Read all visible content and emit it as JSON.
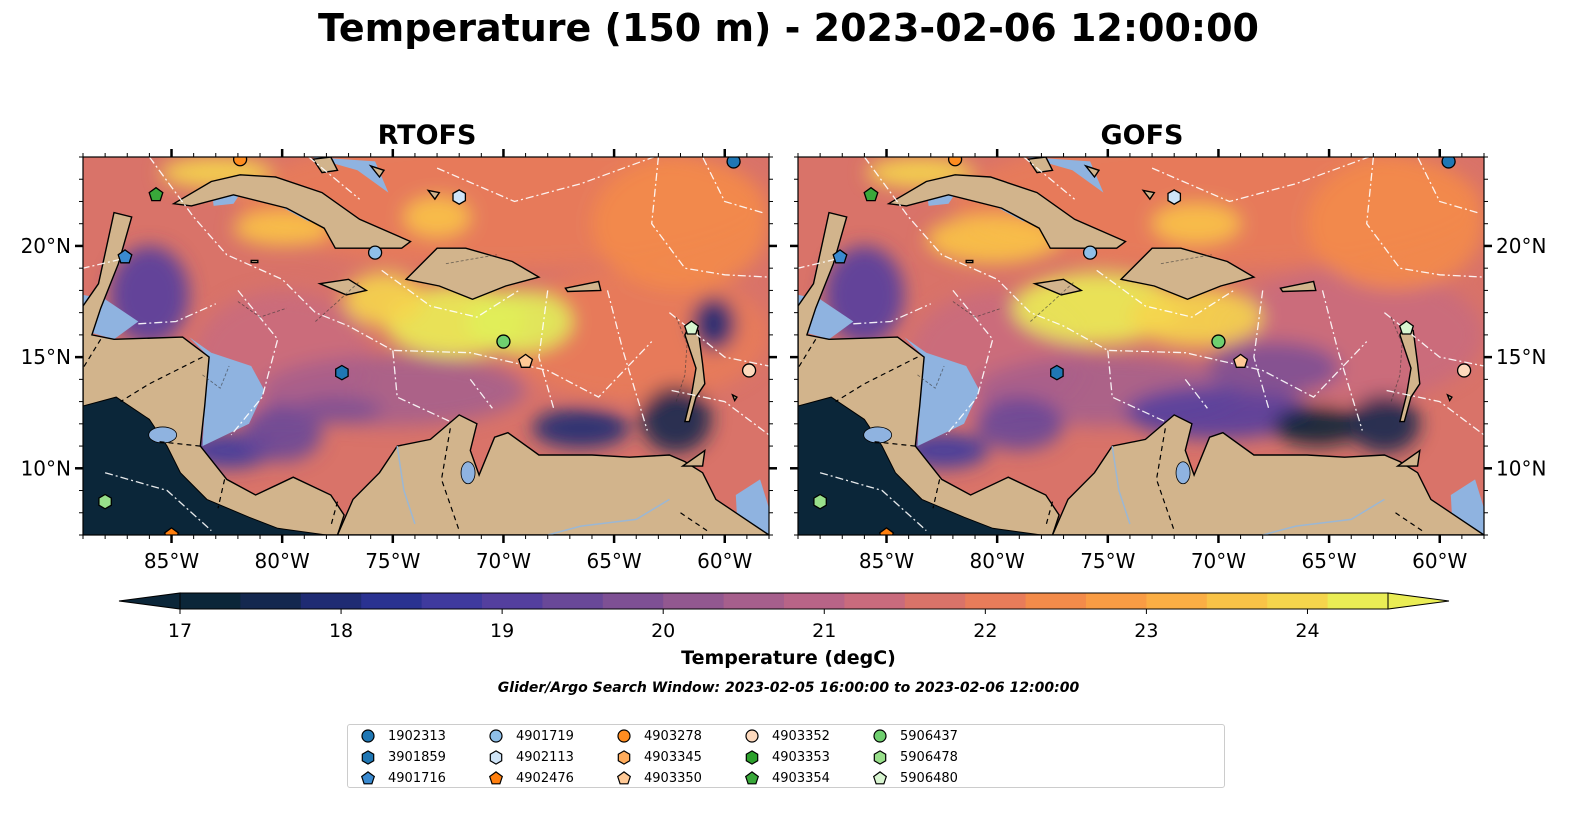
{
  "title": "Temperature (150 m) - 2023-02-06 12:00:00",
  "panels": [
    {
      "title": "RTOFS"
    },
    {
      "title": "GOFS"
    }
  ],
  "axes": {
    "x_ticks": [
      "85°W",
      "80°W",
      "75°W",
      "70°W",
      "65°W",
      "60°W"
    ],
    "x_tick_values": [
      -85,
      -80,
      -75,
      -70,
      -65,
      -60
    ],
    "y_ticks": [
      "20°N",
      "15°N",
      "10°N"
    ],
    "y_tick_values": [
      20,
      15,
      10
    ],
    "lon_range": [
      -89,
      -58
    ],
    "lat_range": [
      7,
      24
    ]
  },
  "colorbar": {
    "label": "Temperature (degC)",
    "tick_labels": [
      "17",
      "18",
      "19",
      "20",
      "21",
      "22",
      "23",
      "24"
    ],
    "tick_values": [
      17,
      18,
      19,
      20,
      21,
      22,
      23,
      24
    ],
    "range": [
      16.75,
      24.5
    ],
    "extend": "both",
    "colors": [
      "#0b2639",
      "#14284f",
      "#1f2b73",
      "#2a3291",
      "#3f3a9e",
      "#543f9e",
      "#694898",
      "#7e5094",
      "#925890",
      "#a65f8c",
      "#b86487",
      "#c96b7d",
      "#d97369",
      "#e87c5a",
      "#f38b4a",
      "#f99c44",
      "#fbae44",
      "#f9c347",
      "#f5d54c",
      "#eaed55"
    ]
  },
  "search_window": "Glider/Argo Search Window: 2023-02-05 16:00:00 to 2023-02-06 12:00:00",
  "legend": [
    {
      "id": "1902313",
      "color": "#1f77b4",
      "marker": "circle"
    },
    {
      "id": "3901859",
      "color": "#1f77b4",
      "marker": "hexagon"
    },
    {
      "id": "4901716",
      "color": "#3a8ad0",
      "marker": "pentagon"
    },
    {
      "id": "4901719",
      "color": "#8fbfe8",
      "marker": "circle"
    },
    {
      "id": "4902113",
      "color": "#cfe4f7",
      "marker": "hexagon"
    },
    {
      "id": "4902476",
      "color": "#ff7f0e",
      "marker": "pentagon"
    },
    {
      "id": "4903278",
      "color": "#ff8c20",
      "marker": "circle"
    },
    {
      "id": "4903345",
      "color": "#ffac5c",
      "marker": "hexagon"
    },
    {
      "id": "4903350",
      "color": "#ffc996",
      "marker": "pentagon"
    },
    {
      "id": "4903352",
      "color": "#fdd9bd",
      "marker": "circle"
    },
    {
      "id": "4903353",
      "color": "#2ca02c",
      "marker": "hexagon"
    },
    {
      "id": "4903354",
      "color": "#39a83a",
      "marker": "pentagon"
    },
    {
      "id": "5906437",
      "color": "#6fcf6f",
      "marker": "circle"
    },
    {
      "id": "5906478",
      "color": "#98df8a",
      "marker": "hexagon"
    },
    {
      "id": "5906480",
      "color": "#d8f5d0",
      "marker": "pentagon"
    }
  ],
  "floats": [
    {
      "id": "1902313",
      "lon": -59.6,
      "lat": 23.8
    },
    {
      "id": "3901859",
      "lon": -77.3,
      "lat": 14.3
    },
    {
      "id": "4901716",
      "lon": -87.1,
      "lat": 19.5
    },
    {
      "id": "4901719",
      "lon": -75.8,
      "lat": 19.7
    },
    {
      "id": "4902113",
      "lon": -72.0,
      "lat": 22.2
    },
    {
      "id": "4902476",
      "lon": -85.0,
      "lat": 7.0
    },
    {
      "id": "4903278",
      "lon": -81.9,
      "lat": 23.9
    },
    {
      "id": "4903350",
      "lon": -69.0,
      "lat": 14.8
    },
    {
      "id": "4903352",
      "lon": -58.9,
      "lat": 14.4
    },
    {
      "id": "4903354",
      "lon": -85.7,
      "lat": 22.3
    },
    {
      "id": "5906437",
      "lon": -70.0,
      "lat": 15.7
    },
    {
      "id": "5906478",
      "lon": -88.0,
      "lat": 8.5
    },
    {
      "id": "5906480",
      "lon": -61.5,
      "lat": 16.3
    }
  ],
  "land_color": "#d2b48c",
  "shelf_color": "#8fb3e0",
  "pacific_color": "#0b2639"
}
